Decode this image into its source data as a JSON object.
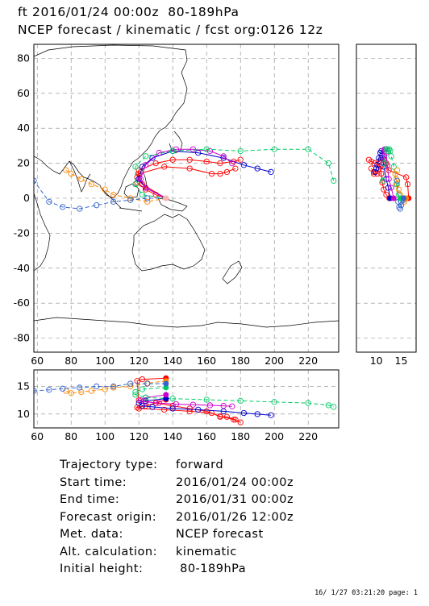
{
  "header": {
    "line1": "ft 2016/01/24 00:00z  80-189hPa",
    "line2": "NCEP forecast / kinematic / fcst org:0126 12z"
  },
  "chart_data": {
    "type": "line",
    "main_map": {
      "xlim": [
        58,
        238
      ],
      "ylim": [
        -88,
        88
      ],
      "x_ticks": [
        60,
        80,
        100,
        120,
        140,
        160,
        180,
        200,
        220
      ],
      "y_ticks": [
        -80,
        -60,
        -40,
        -20,
        0,
        20,
        40,
        60,
        80
      ],
      "grid": true,
      "map_background": "world coastlines"
    },
    "lat_panel": {
      "xlim": [
        6,
        18
      ],
      "ylim": [
        -88,
        88
      ],
      "x_ticks": [
        10,
        15
      ]
    },
    "lon_panel": {
      "xlim": [
        58,
        238
      ],
      "ylim": [
        7.5,
        18
      ],
      "x_ticks": [
        60,
        80,
        100,
        120,
        140,
        160,
        180,
        200,
        220
      ],
      "y_ticks": [
        10,
        15
      ]
    },
    "series": [
      {
        "color": "#ff0000",
        "style": "solid",
        "lon": [
          136,
          130,
          124,
          119,
          120,
          135,
          150,
          163,
          168,
          172,
          177
        ],
        "lat": [
          0,
          2,
          5,
          9,
          14,
          18,
          17,
          14,
          14,
          15,
          17
        ],
        "height": [
          12.6,
          12.0,
          11.5,
          11.2,
          11.0,
          10.8,
          10.5,
          10.2,
          9.5,
          9.5,
          9.0
        ]
      },
      {
        "color": "#ff0000",
        "style": "solid",
        "lon": [
          136,
          122,
          119,
          120,
          130,
          140,
          150,
          160,
          168,
          176,
          180
        ],
        "lat": [
          0,
          8,
          12,
          16,
          20,
          22,
          22,
          21,
          20,
          21,
          22
        ],
        "height": [
          16.5,
          16.3,
          16.0,
          12.5,
          12.0,
          11.5,
          11.0,
          10.5,
          9.6,
          9.0,
          8.5
        ]
      },
      {
        "color": "#0000cc",
        "style": "solid",
        "lon": [
          136,
          124,
          120,
          122,
          128,
          140,
          155,
          170,
          182,
          190,
          198
        ],
        "lat": [
          0,
          6,
          11,
          18,
          23,
          27,
          26,
          23,
          19,
          17,
          15
        ],
        "height": [
          12.8,
          12.4,
          12.0,
          11.5,
          11.3,
          11.0,
          10.8,
          10.5,
          10.2,
          10.0,
          9.8
        ]
      },
      {
        "color": "#cc00cc",
        "style": "solid",
        "lon": [
          136,
          124,
          121,
          124,
          132,
          142,
          152,
          162,
          170,
          175
        ],
        "lat": [
          0,
          6,
          11,
          19,
          26,
          28,
          28,
          27,
          24,
          20
        ],
        "height": [
          13.5,
          13.0,
          12.5,
          12.2,
          12.0,
          11.8,
          11.7,
          11.6,
          11.5,
          11.4
        ]
      },
      {
        "color": "#00cc66",
        "style": "dashed",
        "lon": [
          136,
          122,
          118,
          118,
          124,
          140,
          160,
          180,
          200,
          220,
          232,
          235
        ],
        "lat": [
          0,
          2,
          8,
          18,
          24,
          27,
          28,
          27,
          28,
          28,
          20,
          10
        ],
        "height": [
          14.8,
          14.5,
          14.0,
          13.5,
          13.0,
          12.8,
          12.6,
          12.4,
          12.2,
          12.0,
          11.6,
          11.3
        ]
      },
      {
        "color": "#ff8800",
        "style": "dashed",
        "lon": [
          136,
          125,
          115,
          105,
          100,
          92,
          86,
          80,
          77
        ],
        "lat": [
          0,
          -2,
          0,
          2,
          5,
          8,
          11,
          14,
          16
        ],
        "height": [
          16.0,
          15.6,
          15.0,
          14.8,
          14.5,
          14.2,
          14.0,
          13.8,
          14.2
        ]
      },
      {
        "color": "#3366cc",
        "style": "dashed",
        "lon": [
          136,
          125,
          115,
          105,
          95,
          85,
          75,
          67,
          58
        ],
        "lat": [
          0,
          0,
          -1,
          -2,
          -4,
          -6,
          -5,
          -2,
          10
        ],
        "height": [
          15.5,
          15.5,
          15.5,
          15.0,
          15.0,
          14.8,
          14.6,
          14.4,
          14.2
        ]
      }
    ]
  },
  "info": {
    "rows": [
      {
        "label": "Trajectory type:",
        "value": "forward"
      },
      {
        "label": "Start time:",
        "value": "2016/01/24 00:00z"
      },
      {
        "label": "End time:",
        "value": "2016/01/31 00:00z"
      },
      {
        "label": "Forecast origin:",
        "value": "2016/01/26 12:00z"
      },
      {
        "label": "Met. data:",
        "value": "NCEP forecast"
      },
      {
        "label": "Alt. calculation:",
        "value": "kinematic"
      },
      {
        "label": "Initial height:",
        "value": " 80-189hPa"
      }
    ]
  },
  "footer": "16/ 1/27 03:21:20 page: 1"
}
